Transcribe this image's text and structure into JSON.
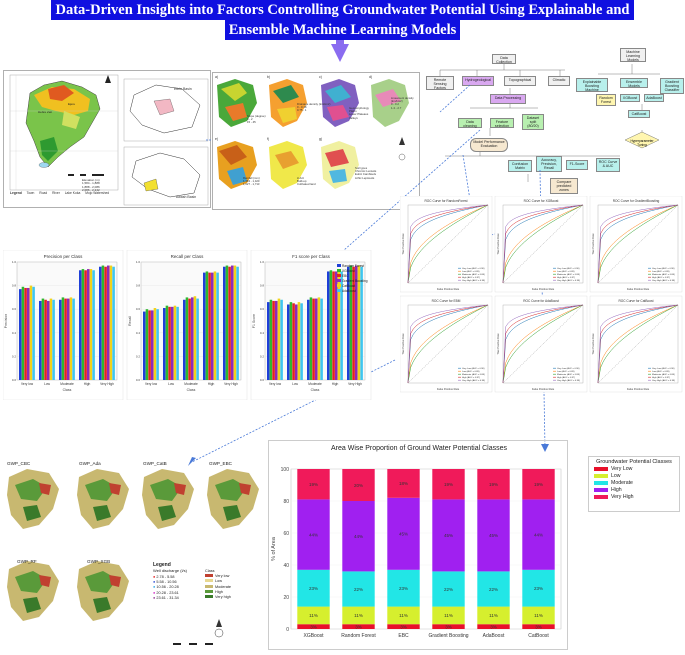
{
  "title": {
    "line1": "Data-Driven Insights into Factors Controlling Groundwater Potential Using Explainable and",
    "line2": "Ensemble Machine Learning Models"
  },
  "study_area": {
    "legend_title": "Legend",
    "legend_items": [
      "Town",
      "Road",
      "River",
      "Lake Koka",
      "Mojo Watershed"
    ],
    "elevation_label": "Elevation (m)",
    "elevation_classes": [
      "1,584 - 1,888",
      "1,888 - 2,086",
      "2,086 - 2,242",
      "2,242 - 2,450",
      "2,450 - 2,896"
    ],
    "inset1": "Ethio Basin",
    "inset2": "Awash Basin"
  },
  "factor_maps": {
    "labels": [
      "a)",
      "b)",
      "c)",
      "d)",
      "e)",
      "f)",
      "g)"
    ],
    "slope_title": "Slope (degree)",
    "slope_classes": [
      "0 - 2",
      "2 - 5",
      "5 - 10",
      "10 - 15",
      "15 - 45"
    ],
    "drainage_title": "Drainage density (km/km2)",
    "drainage_classes": [
      "0 - 0.18",
      "0.18 - 0.38",
      "0.38 - 0.56",
      "0.56 - 0.75",
      "0.75 - 1"
    ],
    "geomorphology_title": "Geomorphology",
    "geomorphology_classes": [
      "Plains",
      "Lower Plateaus",
      "Escarpments",
      "Upper Plateaus",
      "Middle Plateaus",
      "Valleys",
      "Mountains"
    ],
    "lineament_title": "Lineament density (km/km2)",
    "lineament_classes": [
      "0 - 0.2",
      "0.2 - 0.5",
      "0.5 - 0.8",
      "0.8 - 1.4",
      "1.4 - 2.7"
    ],
    "rainfall_title": "Rainfall (mm)",
    "rainfall_classes": [
      "1,363 - 1,420",
      "1,420 - 1,481",
      "1,481 - 1,547",
      "1,547 - 1,627",
      "1,627 - 1,713"
    ],
    "lulc_title": "LULC",
    "lulc_classes": [
      "Built-up",
      "Water",
      "Bare land",
      "Forest",
      "Grassland",
      "Cultivated land"
    ],
    "soil_title": "Soil types",
    "soil_classes": [
      "Chromic Luvisols",
      "Eutric Cambisols",
      "Eutric Vertisols",
      "Luvic Phaeozems",
      "Lithic Leptosols",
      "Pellic Vertisols",
      "Haplic Luvisols"
    ]
  },
  "flowchart": {
    "data_collection": "Data Collection",
    "remote_sensing": "Remote Sensing Factors",
    "hydrogeological": "Hydrogeological",
    "topographical": "Topographical",
    "climatic": "Climatic",
    "data_processing": "Data Processing",
    "data_cleaning": "Data cleaning",
    "feature_selection": "Feature selection",
    "dataset_split": "Dataset split (80/20)",
    "model_eval": "Model Performance Evaluation",
    "confusion": "Confusion Matrix",
    "accuracy": "Accuracy, Precision, Recall",
    "f1": "F1-Score",
    "roc": "ROC Curve & AUC",
    "compare": "Compare predicted zones",
    "ml_models": "Machine Learning Models",
    "explainable": "Explainable Boosting Machine",
    "ensemble": "Ensemble Models",
    "rf": "Random Forest",
    "xgb": "XGBoost",
    "ada": "AdaBoost",
    "gbc": "Gradient Boosting Classifier",
    "catboost": "CatBoost",
    "tuning": "Hyperparameter Tuning"
  },
  "roc_panels": {
    "titles": [
      "ROC Curve for RandomForest",
      "ROC Curve for XGBoost",
      "ROC Curve for GradientBoosting",
      "ROC Curve for EBM",
      "ROC Curve for AdaBoost",
      "ROC Curve for CatBoost"
    ],
    "xlabel": "False Positive Rate",
    "ylabel": "True Positive Rate",
    "legend": [
      "Very Low (AUC = 0.96)",
      "Low (AUC = 0.89)",
      "Moderate (AUC = 0.88)",
      "High (AUC = 0.97)",
      "Very High (AUC = 0.98)"
    ],
    "colors": [
      "#1f77b4",
      "#ff7f0e",
      "#2ca02c",
      "#d62728",
      "#9467bd"
    ]
  },
  "metric_charts": {
    "classes": [
      "Very low",
      "Low",
      "Moderate",
      "High",
      "Very High"
    ],
    "xlabel": "Class",
    "models": [
      "Random Forest",
      "XGBoost",
      "EBC",
      "Gradient Boosting",
      "CatBoost",
      "AdaBoost"
    ],
    "colors": [
      "#1f3fd8",
      "#2eb82e",
      "#e32222",
      "#8e2ab8",
      "#f2d31a",
      "#3ec5f0"
    ],
    "ylim": [
      0,
      1
    ]
  },
  "gwp_maps": {
    "names": [
      "GWP_CBC",
      "GWP_Ada",
      "GWP_CatB",
      "GWP_EBC",
      "GWP_RF",
      "GWP_XGB"
    ],
    "legend_title": "Legend",
    "well_title": "Well discharge (l/s)",
    "well_classes": [
      "2.78 - 5.58",
      "5.58 - 10.56",
      "10.56 - 20.28",
      "20.28 - 23.61",
      "23.61 - 31.34"
    ],
    "class_title": "Class",
    "class_names": [
      "Very low",
      "Low",
      "Moderate",
      "High",
      "Very high"
    ]
  },
  "chart_data": [
    {
      "type": "bar",
      "title": "Precision per Class",
      "ylabel": "Precision",
      "xlabel": "Class",
      "categories": [
        "Very low",
        "Low",
        "Moderate",
        "High",
        "Very High"
      ],
      "ylim": [
        0,
        1
      ],
      "series": [
        {
          "name": "Random Forest",
          "values": [
            0.77,
            0.67,
            0.68,
            0.93,
            0.96
          ]
        },
        {
          "name": "XGBoost",
          "values": [
            0.79,
            0.69,
            0.7,
            0.94,
            0.97
          ]
        },
        {
          "name": "EBC",
          "values": [
            0.78,
            0.68,
            0.69,
            0.93,
            0.96
          ]
        },
        {
          "name": "Gradient Boosting",
          "values": [
            0.78,
            0.67,
            0.69,
            0.94,
            0.97
          ]
        },
        {
          "name": "CatBoost",
          "values": [
            0.8,
            0.69,
            0.7,
            0.94,
            0.97
          ]
        },
        {
          "name": "AdaBoost",
          "values": [
            0.79,
            0.68,
            0.69,
            0.93,
            0.96
          ]
        }
      ]
    },
    {
      "type": "bar",
      "title": "Recall per Class",
      "ylabel": "Recall",
      "xlabel": "Class",
      "categories": [
        "Very low",
        "Low",
        "Moderate",
        "High",
        "Very High"
      ],
      "ylim": [
        0,
        1
      ],
      "series": [
        {
          "name": "Random Forest",
          "values": [
            0.58,
            0.61,
            0.68,
            0.91,
            0.96
          ]
        },
        {
          "name": "XGBoost",
          "values": [
            0.6,
            0.63,
            0.7,
            0.92,
            0.97
          ]
        },
        {
          "name": "EBC",
          "values": [
            0.59,
            0.62,
            0.69,
            0.91,
            0.96
          ]
        },
        {
          "name": "Gradient Boosting",
          "values": [
            0.59,
            0.62,
            0.7,
            0.91,
            0.97
          ]
        },
        {
          "name": "CatBoost",
          "values": [
            0.61,
            0.63,
            0.71,
            0.92,
            0.97
          ]
        },
        {
          "name": "AdaBoost",
          "values": [
            0.6,
            0.62,
            0.69,
            0.91,
            0.96
          ]
        }
      ]
    },
    {
      "type": "bar",
      "title": "F1 score per Class",
      "ylabel": "F1 Score",
      "xlabel": "Class",
      "categories": [
        "Very low",
        "Low",
        "Moderate",
        "High",
        "Very High"
      ],
      "ylim": [
        0,
        1
      ],
      "series": [
        {
          "name": "Random Forest",
          "values": [
            0.66,
            0.64,
            0.68,
            0.92,
            0.96
          ]
        },
        {
          "name": "XGBoost",
          "values": [
            0.68,
            0.66,
            0.7,
            0.93,
            0.97
          ]
        },
        {
          "name": "EBC",
          "values": [
            0.67,
            0.65,
            0.69,
            0.92,
            0.96
          ]
        },
        {
          "name": "Gradient Boosting",
          "values": [
            0.67,
            0.64,
            0.69,
            0.92,
            0.97
          ]
        },
        {
          "name": "CatBoost",
          "values": [
            0.69,
            0.66,
            0.7,
            0.93,
            0.97
          ]
        },
        {
          "name": "AdaBoost",
          "values": [
            0.68,
            0.65,
            0.69,
            0.92,
            0.96
          ]
        }
      ]
    },
    {
      "type": "bar",
      "title": "Area Wise Proportion of Ground Water Potential Classes",
      "ylabel": "% of Area",
      "categories": [
        "XGBoost",
        "Random Forest",
        "EBC",
        "Gradient Boosting",
        "AdaBoost",
        "CatBoost"
      ],
      "ylim": [
        0,
        100
      ],
      "stacked": true,
      "series": [
        {
          "name": "Very Low",
          "values": [
            3,
            3,
            3,
            3,
            3,
            3
          ],
          "labels": [
            "3%",
            "3%",
            "3%",
            "3%",
            "3%",
            "3%"
          ]
        },
        {
          "name": "Low",
          "values": [
            11,
            11,
            11,
            11,
            11,
            11
          ],
          "labels": [
            "11%",
            "11%",
            "11%",
            "11%",
            "11%",
            "11%"
          ]
        },
        {
          "name": "Moderate",
          "values": [
            23,
            22,
            23,
            22,
            22,
            23
          ],
          "labels": [
            "23%",
            "22%",
            "23%",
            "22%",
            "22%",
            "23%"
          ]
        },
        {
          "name": "High",
          "values": [
            44,
            44,
            45,
            45,
            45,
            44
          ],
          "labels": [
            "44%",
            "44%",
            "45%",
            "45%",
            "45%",
            "44%"
          ]
        },
        {
          "name": "Very High",
          "values": [
            19,
            20,
            18,
            19,
            19,
            19
          ],
          "labels": [
            "19%",
            "20%",
            "18%",
            "19%",
            "19%",
            "19%"
          ]
        }
      ],
      "legend_title": "Groundwater Potential Classes",
      "colors": [
        "#e8102a",
        "#d6ef2e",
        "#22e6e6",
        "#a020f0",
        "#f01a5a"
      ]
    }
  ]
}
